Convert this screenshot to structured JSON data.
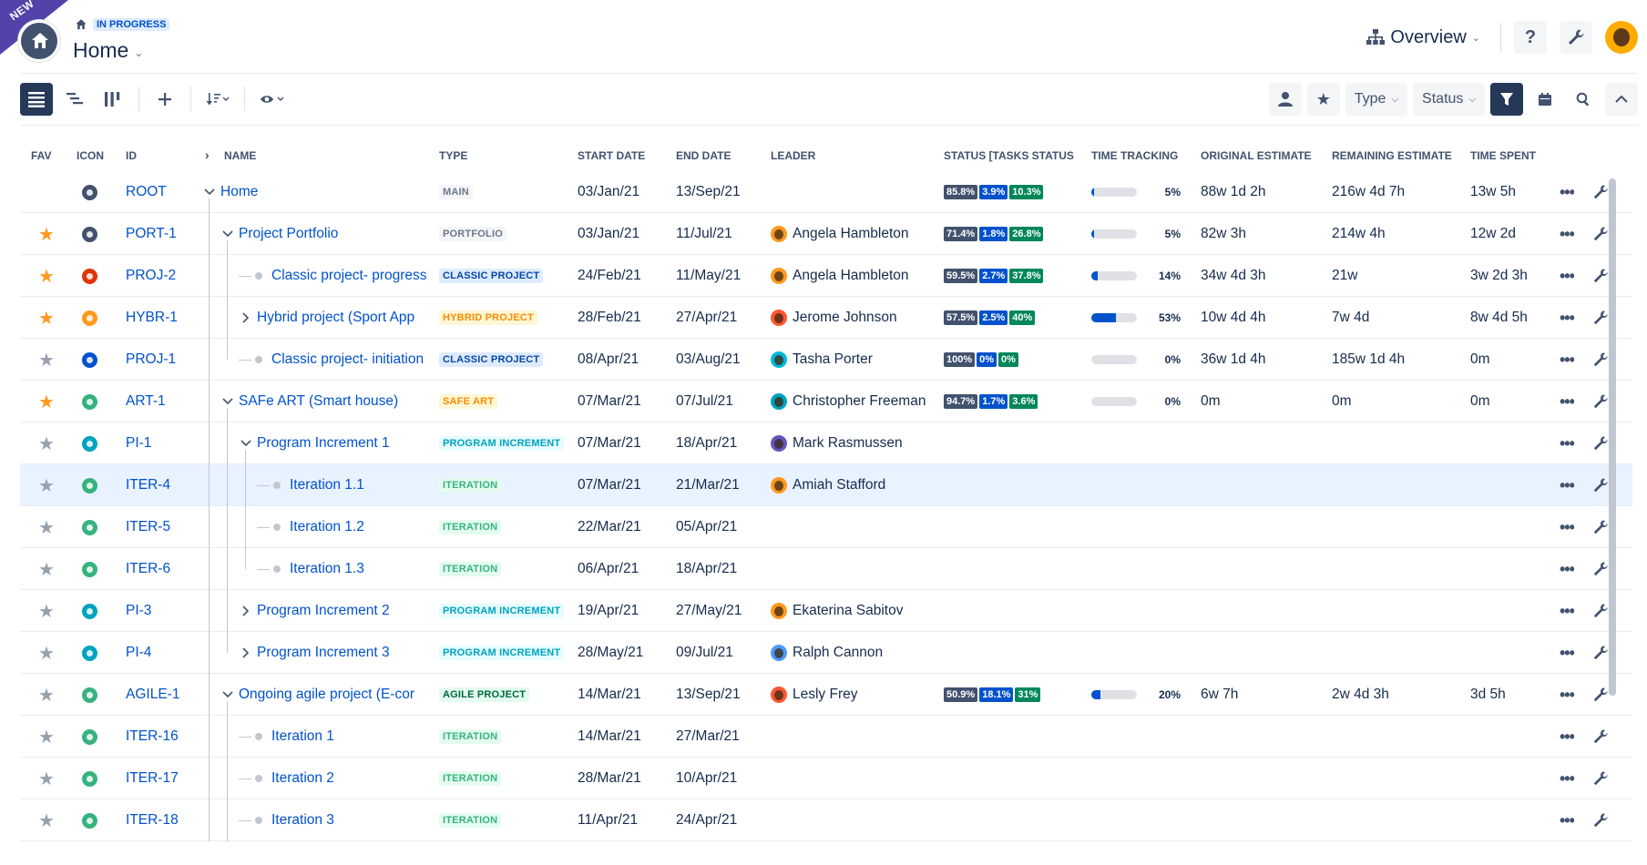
{
  "header": {
    "new_ribbon": "NEW",
    "status_badge": "IN PROGRESS",
    "title": "Home",
    "overview_label": "Overview",
    "help_label": "?"
  },
  "toolbar": {
    "type_label": "Type",
    "status_label": "Status"
  },
  "columns": {
    "fav": "FAV",
    "icon": "ICON",
    "id": "ID",
    "name": "NAME",
    "type": "TYPE",
    "start": "START DATE",
    "end": "END DATE",
    "leader": "LEADER",
    "status": "STATUS [TASKS STATUS",
    "time_tracking": "TIME TRACKING",
    "original_estimate": "ORIGINAL ESTIMATE",
    "remaining_estimate": "REMAINING ESTIMATE",
    "time_spent": "TIME SPENT"
  },
  "type_colors": {
    "MAIN": {
      "bg": "#f4f5f7",
      "fg": "#6b778c"
    },
    "PORTFOLIO": {
      "bg": "#f4f5f7",
      "fg": "#6b778c"
    },
    "CLASSIC PROJECT": {
      "bg": "#deebff",
      "fg": "#0747a6"
    },
    "HYBRID PROJECT": {
      "bg": "#fff7d6",
      "fg": "#ff8b00"
    },
    "SAFE ART": {
      "bg": "#fff7d6",
      "fg": "#ff8b00"
    },
    "PROGRAM INCREMENT": {
      "bg": "#e6fcff",
      "fg": "#00a3bf"
    },
    "ITERATION": {
      "bg": "#e3fcef",
      "fg": "#36b37e"
    },
    "AGILE PROJECT": {
      "bg": "#e3fcef",
      "fg": "#006644"
    }
  },
  "rows": [
    {
      "fav": false,
      "icon_color": "#42526e",
      "icon": "home-icon",
      "id": "ROOT",
      "level": 0,
      "toggle": "down",
      "name": "Home",
      "type": "MAIN",
      "start": "03/Jan/21",
      "end": "13/Sep/21",
      "leader": "",
      "avatar_color": "",
      "status": [
        "85.8%",
        "3.9%",
        "10.3%"
      ],
      "tt_pct": 5,
      "tt_label": "5%",
      "orig": "88w 1d 2h",
      "rem": "216w 4d 7h",
      "spent": "13w 5h"
    },
    {
      "fav": true,
      "icon_color": "#42526e",
      "icon": "portfolio-icon",
      "id": "PORT-1",
      "level": 1,
      "toggle": "down",
      "name": "Project Portfolio",
      "type": "PORTFOLIO",
      "start": "03/Jan/21",
      "end": "11/Jul/21",
      "leader": "Angela Hambleton",
      "avatar_color": "#ff991f",
      "status": [
        "71.4%",
        "1.8%",
        "26.8%"
      ],
      "tt_pct": 5,
      "tt_label": "5%",
      "orig": "82w 3h",
      "rem": "214w 4h",
      "spent": "12w 2d"
    },
    {
      "fav": true,
      "icon_color": "#de350b",
      "icon": "classic-project-icon",
      "id": "PROJ-2",
      "level": 2,
      "toggle": "leaf",
      "name": "Classic project- progress",
      "type": "CLASSIC PROJECT",
      "start": "24/Feb/21",
      "end": "11/May/21",
      "leader": "Angela Hambleton",
      "avatar_color": "#ff991f",
      "status": [
        "59.5%",
        "2.7%",
        "37.8%"
      ],
      "tt_pct": 14,
      "tt_label": "14%",
      "orig": "34w 4d 3h",
      "rem": "21w",
      "spent": "3w 2d 3h"
    },
    {
      "fav": true,
      "icon_color": "#ff991f",
      "icon": "hybrid-project-icon",
      "id": "HYBR-1",
      "level": 2,
      "toggle": "right",
      "name": "Hybrid project (Sport App",
      "type": "HYBRID PROJECT",
      "start": "28/Feb/21",
      "end": "27/Apr/21",
      "leader": "Jerome Johnson",
      "avatar_color": "#ff5630",
      "status": [
        "57.5%",
        "2.5%",
        "40%"
      ],
      "tt_pct": 53,
      "tt_label": "53%",
      "orig": "10w 4d 4h",
      "rem": "7w 4d",
      "spent": "8w 4d 5h"
    },
    {
      "fav": false,
      "icon_color": "#0052cc",
      "icon": "classic-project-icon",
      "id": "PROJ-1",
      "level": 2,
      "toggle": "leaf",
      "name": "Classic project- initiation",
      "type": "CLASSIC PROJECT",
      "start": "08/Apr/21",
      "end": "03/Aug/21",
      "leader": "Tasha Porter",
      "avatar_color": "#00b8d9",
      "status": [
        "100%",
        "0%",
        "0%"
      ],
      "tt_pct": 0,
      "tt_label": "0%",
      "orig": "36w 1d 4h",
      "rem": "185w 1d 4h",
      "spent": "0m"
    },
    {
      "fav": true,
      "icon_color": "#36b37e",
      "icon": "safe-art-icon",
      "id": "ART-1",
      "level": 1,
      "toggle": "down",
      "name": "SAFe ART (Smart house)",
      "type": "SAFE ART",
      "start": "07/Mar/21",
      "end": "07/Jul/21",
      "leader": "Christopher Freeman",
      "avatar_color": "#00a3bf",
      "status": [
        "94.7%",
        "1.7%",
        "3.6%"
      ],
      "tt_pct": 0,
      "tt_label": "0%",
      "orig": "0m",
      "rem": "0m",
      "spent": "0m"
    },
    {
      "fav": false,
      "icon_color": "#00a3bf",
      "icon": "program-increment-icon",
      "id": "PI-1",
      "level": 2,
      "toggle": "down",
      "name": "Program Increment 1",
      "type": "PROGRAM INCREMENT",
      "start": "07/Mar/21",
      "end": "18/Apr/21",
      "leader": "Mark Rasmussen",
      "avatar_color": "#6554c0",
      "status": [],
      "tt_pct": null,
      "tt_label": "",
      "orig": "",
      "rem": "",
      "spent": ""
    },
    {
      "fav": false,
      "icon_color": "#36b37e",
      "icon": "iteration-icon",
      "id": "ITER-4",
      "level": 3,
      "toggle": "leaf",
      "name": "Iteration 1.1",
      "type": "ITERATION",
      "start": "07/Mar/21",
      "end": "21/Mar/21",
      "leader": "Amiah Stafford",
      "avatar_color": "#ff991f",
      "status": [],
      "tt_pct": null,
      "tt_label": "",
      "orig": "",
      "rem": "",
      "spent": "",
      "selected": true
    },
    {
      "fav": false,
      "icon_color": "#36b37e",
      "icon": "iteration-icon",
      "id": "ITER-5",
      "level": 3,
      "toggle": "leaf",
      "name": "Iteration 1.2",
      "type": "ITERATION",
      "start": "22/Mar/21",
      "end": "05/Apr/21",
      "leader": "",
      "avatar_color": "",
      "status": [],
      "tt_pct": null,
      "tt_label": "",
      "orig": "",
      "rem": "",
      "spent": ""
    },
    {
      "fav": false,
      "icon_color": "#36b37e",
      "icon": "iteration-icon",
      "id": "ITER-6",
      "level": 3,
      "toggle": "leaf",
      "name": "Iteration 1.3",
      "type": "ITERATION",
      "start": "06/Apr/21",
      "end": "18/Apr/21",
      "leader": "",
      "avatar_color": "",
      "status": [],
      "tt_pct": null,
      "tt_label": "",
      "orig": "",
      "rem": "",
      "spent": ""
    },
    {
      "fav": false,
      "icon_color": "#00a3bf",
      "icon": "program-increment-icon",
      "id": "PI-3",
      "level": 2,
      "toggle": "right",
      "name": "Program Increment 2",
      "type": "PROGRAM INCREMENT",
      "start": "19/Apr/21",
      "end": "27/May/21",
      "leader": "Ekaterina Sabitov",
      "avatar_color": "#ff991f",
      "status": [],
      "tt_pct": null,
      "tt_label": "",
      "orig": "",
      "rem": "",
      "spent": ""
    },
    {
      "fav": false,
      "icon_color": "#00a3bf",
      "icon": "program-increment-icon",
      "id": "PI-4",
      "level": 2,
      "toggle": "right",
      "name": "Program Increment 3",
      "type": "PROGRAM INCREMENT",
      "start": "28/May/21",
      "end": "09/Jul/21",
      "leader": "Ralph Cannon",
      "avatar_color": "#4c9aff",
      "status": [],
      "tt_pct": null,
      "tt_label": "",
      "orig": "",
      "rem": "",
      "spent": ""
    },
    {
      "fav": false,
      "icon_color": "#36b37e",
      "icon": "agile-project-icon",
      "id": "AGILE-1",
      "level": 1,
      "toggle": "down",
      "name": "Ongoing agile project (E-cor",
      "type": "AGILE PROJECT",
      "start": "14/Mar/21",
      "end": "13/Sep/21",
      "leader": "Lesly Frey",
      "avatar_color": "#ff5630",
      "status": [
        "50.9%",
        "18.1%",
        "31%"
      ],
      "tt_pct": 20,
      "tt_label": "20%",
      "orig": "6w 7h",
      "rem": "2w 4d 3h",
      "spent": "3d 5h"
    },
    {
      "fav": false,
      "icon_color": "#36b37e",
      "icon": "iteration-icon",
      "id": "ITER-16",
      "level": 2,
      "toggle": "leaf",
      "name": "Iteration 1",
      "type": "ITERATION",
      "start": "14/Mar/21",
      "end": "27/Mar/21",
      "leader": "",
      "avatar_color": "",
      "status": [],
      "tt_pct": null,
      "tt_label": "",
      "orig": "",
      "rem": "",
      "spent": ""
    },
    {
      "fav": false,
      "icon_color": "#36b37e",
      "icon": "iteration-icon",
      "id": "ITER-17",
      "level": 2,
      "toggle": "leaf",
      "name": "Iteration 2",
      "type": "ITERATION",
      "start": "28/Mar/21",
      "end": "10/Apr/21",
      "leader": "",
      "avatar_color": "",
      "status": [],
      "tt_pct": null,
      "tt_label": "",
      "orig": "",
      "rem": "",
      "spent": ""
    },
    {
      "fav": false,
      "icon_color": "#36b37e",
      "icon": "iteration-icon",
      "id": "ITER-18",
      "level": 2,
      "toggle": "leaf",
      "name": "Iteration 3",
      "type": "ITERATION",
      "start": "11/Apr/21",
      "end": "24/Apr/21",
      "leader": "",
      "avatar_color": "",
      "status": [],
      "tt_pct": null,
      "tt_label": "",
      "orig": "",
      "rem": "",
      "spent": ""
    }
  ]
}
